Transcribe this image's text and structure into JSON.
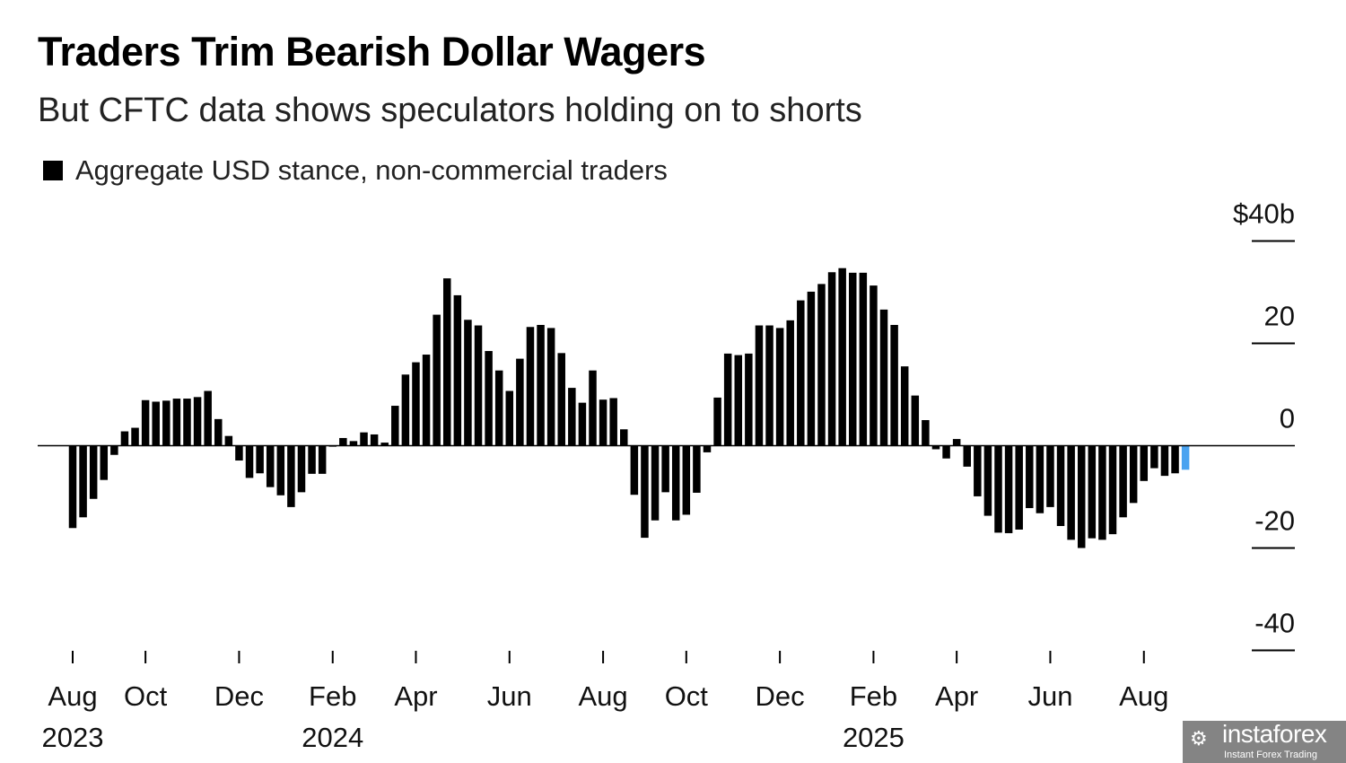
{
  "chart_data": {
    "type": "bar",
    "title": "Traders Trim Bearish Dollar Wagers",
    "subtitle": "But CFTC data shows speculators holding on to shorts",
    "legend": [
      {
        "label": "Aggregate USD stance, non-commercial traders",
        "color": "#000000"
      }
    ],
    "legend_placement": "top-left",
    "ylabel": "",
    "y_unit_label": "$40b",
    "ylim": [
      -40,
      40
    ],
    "yticks": [
      {
        "value": 40,
        "label": "$40b"
      },
      {
        "value": 20,
        "label": "20"
      },
      {
        "value": 0,
        "label": "0"
      },
      {
        "value": -20,
        "label": "-20"
      },
      {
        "value": -40,
        "label": "-40"
      }
    ],
    "x_unit": "weekly",
    "xticks": [
      {
        "week_index": 0,
        "label": "Aug"
      },
      {
        "week_index": 7,
        "label": "Oct"
      },
      {
        "week_index": 16,
        "label": "Dec"
      },
      {
        "week_index": 25,
        "label": "Feb"
      },
      {
        "week_index": 33,
        "label": "Apr"
      },
      {
        "week_index": 42,
        "label": "Jun"
      },
      {
        "week_index": 51,
        "label": "Aug"
      },
      {
        "week_index": 59,
        "label": "Oct"
      },
      {
        "week_index": 68,
        "label": "Dec"
      },
      {
        "week_index": 77,
        "label": "Feb"
      },
      {
        "week_index": 85,
        "label": "Apr"
      },
      {
        "week_index": 94,
        "label": "Jun"
      },
      {
        "week_index": 103,
        "label": "Aug"
      }
    ],
    "year_labels": [
      {
        "week_index": 0,
        "label": "2023"
      },
      {
        "week_index": 25,
        "label": "2024"
      },
      {
        "week_index": 77,
        "label": "2025"
      }
    ],
    "values": [
      -16.1,
      -14.0,
      -10.4,
      -6.7,
      -1.8,
      2.8,
      3.5,
      8.9,
      8.6,
      8.8,
      9.2,
      9.2,
      9.5,
      10.7,
      5.2,
      1.9,
      -2.9,
      -6.3,
      -5.4,
      -8.1,
      -9.7,
      -12.0,
      -9.1,
      -5.5,
      -5.5,
      -0.2,
      1.5,
      0.9,
      2.6,
      2.2,
      0.6,
      7.8,
      13.9,
      16.3,
      17.8,
      25.6,
      32.7,
      29.4,
      24.6,
      23.5,
      18.5,
      14.7,
      10.7,
      17.0,
      23.2,
      23.6,
      23.0,
      18.1,
      11.3,
      8.4,
      14.7,
      9.0,
      9.3,
      3.2,
      -9.6,
      -18.0,
      -14.6,
      -9.1,
      -14.6,
      -13.5,
      -9.2,
      -1.3,
      9.4,
      18.0,
      17.7,
      18.0,
      23.5,
      23.5,
      23.0,
      24.5,
      28.4,
      30.1,
      31.6,
      33.9,
      34.7,
      33.8,
      33.8,
      31.3,
      26.6,
      23.6,
      15.5,
      9.8,
      5.0,
      -0.7,
      -2.5,
      1.3,
      -4.1,
      -9.9,
      -13.7,
      -17.0,
      -17.1,
      -16.4,
      -12.2,
      -13.2,
      -12.0,
      -15.7,
      -18.4,
      -20.0,
      -18.1,
      -18.4,
      -17.3,
      -14.0,
      -11.2,
      -6.9,
      -4.4,
      -5.9,
      -5.4,
      -4.7
    ],
    "bar_color": "#000000",
    "latest_bar_color": "#4aa3f0",
    "grid": false
  },
  "watermark": {
    "name": "instaforex",
    "tagline": "Instant Forex Trading"
  }
}
